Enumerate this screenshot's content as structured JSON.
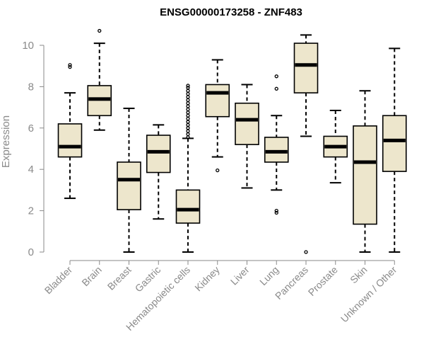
{
  "chart_data": {
    "type": "boxplot",
    "title": "ENSG00000173258 - ZNF483",
    "ylabel": "Expression",
    "xlabel": "",
    "ylim": [
      0,
      10.8
    ],
    "yticks": [
      0,
      2,
      4,
      6,
      8,
      10
    ],
    "grid": false,
    "colors": {
      "box_fill": "#ede6cc",
      "box_stroke": "#000000",
      "axis": "#8a8a8a"
    },
    "groups": [
      {
        "name": "Bladder",
        "whisker_low": 2.6,
        "q1": 4.6,
        "median": 5.1,
        "q3": 6.2,
        "whisker_high": 7.7,
        "outliers": [
          8.95,
          9.05
        ]
      },
      {
        "name": "Brain",
        "whisker_low": 5.9,
        "q1": 6.6,
        "median": 7.4,
        "q3": 8.05,
        "whisker_high": 10.1,
        "outliers": [
          10.7
        ]
      },
      {
        "name": "Breast",
        "whisker_low": 0.0,
        "q1": 2.05,
        "median": 3.5,
        "q3": 4.35,
        "whisker_high": 6.95,
        "outliers": []
      },
      {
        "name": "Gastric",
        "whisker_low": 1.6,
        "q1": 3.85,
        "median": 4.85,
        "q3": 5.65,
        "whisker_high": 6.15,
        "outliers": []
      },
      {
        "name": "Hematopoietic cells",
        "whisker_low": 0.0,
        "q1": 1.4,
        "median": 2.05,
        "q3": 3.0,
        "whisker_high": 5.5,
        "outliers": [
          5.55,
          5.7,
          5.85,
          6.0,
          6.15,
          6.3,
          6.45,
          6.6,
          6.75,
          6.9,
          7.05,
          7.2,
          7.35,
          7.5,
          7.65,
          7.8,
          7.95,
          8.05
        ]
      },
      {
        "name": "Kidney",
        "whisker_low": 4.6,
        "q1": 6.55,
        "median": 7.7,
        "q3": 8.1,
        "whisker_high": 9.3,
        "outliers": [
          3.95
        ]
      },
      {
        "name": "Liver",
        "whisker_low": 3.1,
        "q1": 5.2,
        "median": 6.4,
        "q3": 7.2,
        "whisker_high": 8.1,
        "outliers": []
      },
      {
        "name": "Lung",
        "whisker_low": 3.0,
        "q1": 4.35,
        "median": 4.85,
        "q3": 5.55,
        "whisker_high": 6.6,
        "outliers": [
          1.9,
          2.0,
          7.9,
          8.5
        ]
      },
      {
        "name": "Pancreas",
        "whisker_low": 5.6,
        "q1": 7.7,
        "median": 9.05,
        "q3": 10.1,
        "whisker_high": 10.5,
        "outliers": [
          0.0
        ]
      },
      {
        "name": "Prostate",
        "whisker_low": 3.35,
        "q1": 4.6,
        "median": 5.1,
        "q3": 5.6,
        "whisker_high": 6.85,
        "outliers": []
      },
      {
        "name": "Skin",
        "whisker_low": 0.0,
        "q1": 1.35,
        "median": 4.35,
        "q3": 6.1,
        "whisker_high": 7.8,
        "outliers": []
      },
      {
        "name": "Unknown / Other",
        "whisker_low": 0.0,
        "q1": 3.9,
        "median": 5.4,
        "q3": 6.6,
        "whisker_high": 9.85,
        "outliers": []
      }
    ]
  }
}
